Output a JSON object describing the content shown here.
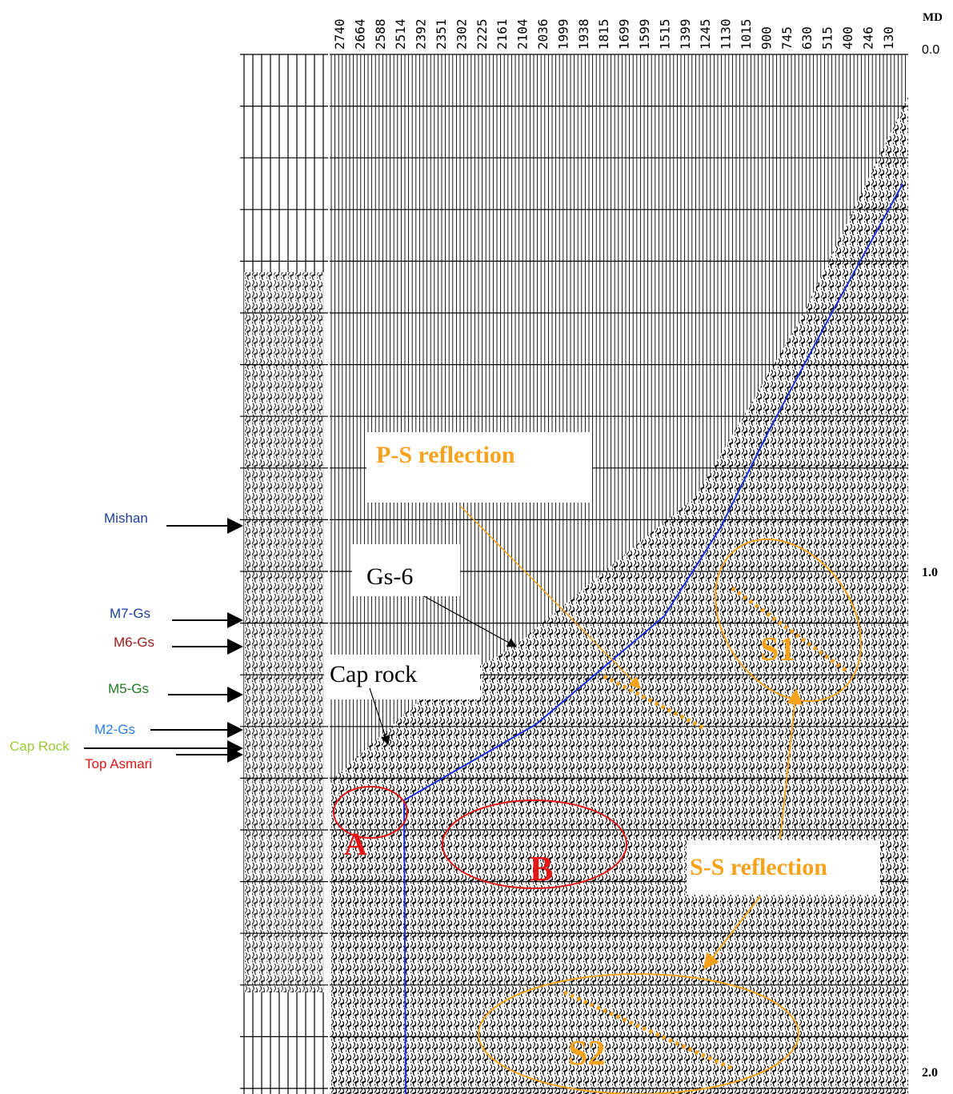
{
  "md_label": "MD",
  "md_values": [
    "2740",
    "2664",
    "2588",
    "2514",
    "2392",
    "2351",
    "2302",
    "2225",
    "2161",
    "2104",
    "2036",
    "1999",
    "1938",
    "1815",
    "1699",
    "1599",
    "1515",
    "1399",
    "1245",
    "1130",
    "1015",
    "900",
    "745",
    "630",
    "515",
    "400",
    "246",
    "130"
  ],
  "time_labels": [
    "0.0",
    "1.0",
    "2.0"
  ],
  "horizons": [
    {
      "label": "Mishan",
      "color": "#1f3f9f"
    },
    {
      "label": "M7-Gs",
      "color": "#1f3f9f"
    },
    {
      "label": "M6-Gs",
      "color": "#a01818"
    },
    {
      "label": "M5-Gs",
      "color": "#1e7a1e"
    },
    {
      "label": "M2-Gs",
      "color": "#2a7de0"
    },
    {
      "label": "Cap Rock",
      "color": "#9acd32"
    },
    {
      "label": "Top Asmari",
      "color": "#e01818"
    }
  ],
  "annotations": {
    "ps": "P-S reflection",
    "ss": "S-S reflection",
    "gs6": "Gs-6",
    "cap": "Cap rock",
    "a": "A",
    "b": "B",
    "s1": "S1",
    "s2": "S2"
  }
}
